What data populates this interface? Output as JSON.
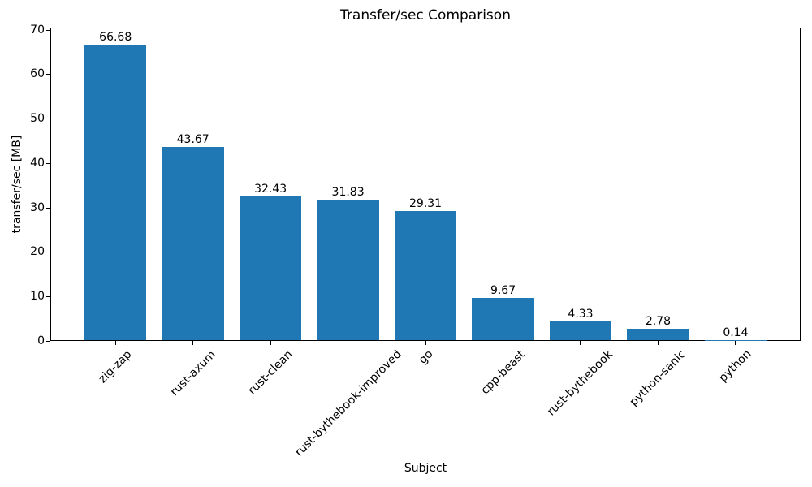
{
  "chart_data": {
    "type": "bar",
    "title": "Transfer/sec Comparison",
    "xlabel": "Subject",
    "ylabel": "transfer/sec [MB]",
    "categories": [
      "zig-zap",
      "rust-axum",
      "rust-clean",
      "rust-bythebook-improved",
      "go",
      "cpp-beast",
      "rust-bythebook",
      "python-sanic",
      "python"
    ],
    "values": [
      66.68,
      43.67,
      32.43,
      31.83,
      29.31,
      9.67,
      4.33,
      2.78,
      0.14
    ],
    "value_labels": [
      "66.68",
      "43.67",
      "32.43",
      "31.83",
      "29.31",
      "9.67",
      "4.33",
      "2.78",
      "0.14"
    ],
    "yticks": [
      0,
      10,
      20,
      30,
      40,
      50,
      60,
      70
    ],
    "ylim": [
      0,
      70.5
    ],
    "x_tick_rotation_deg": 45,
    "grid": false,
    "legend": null,
    "bar_color": "#1f77b4",
    "axis_color": "#000000",
    "background_color": "#ffffff"
  }
}
